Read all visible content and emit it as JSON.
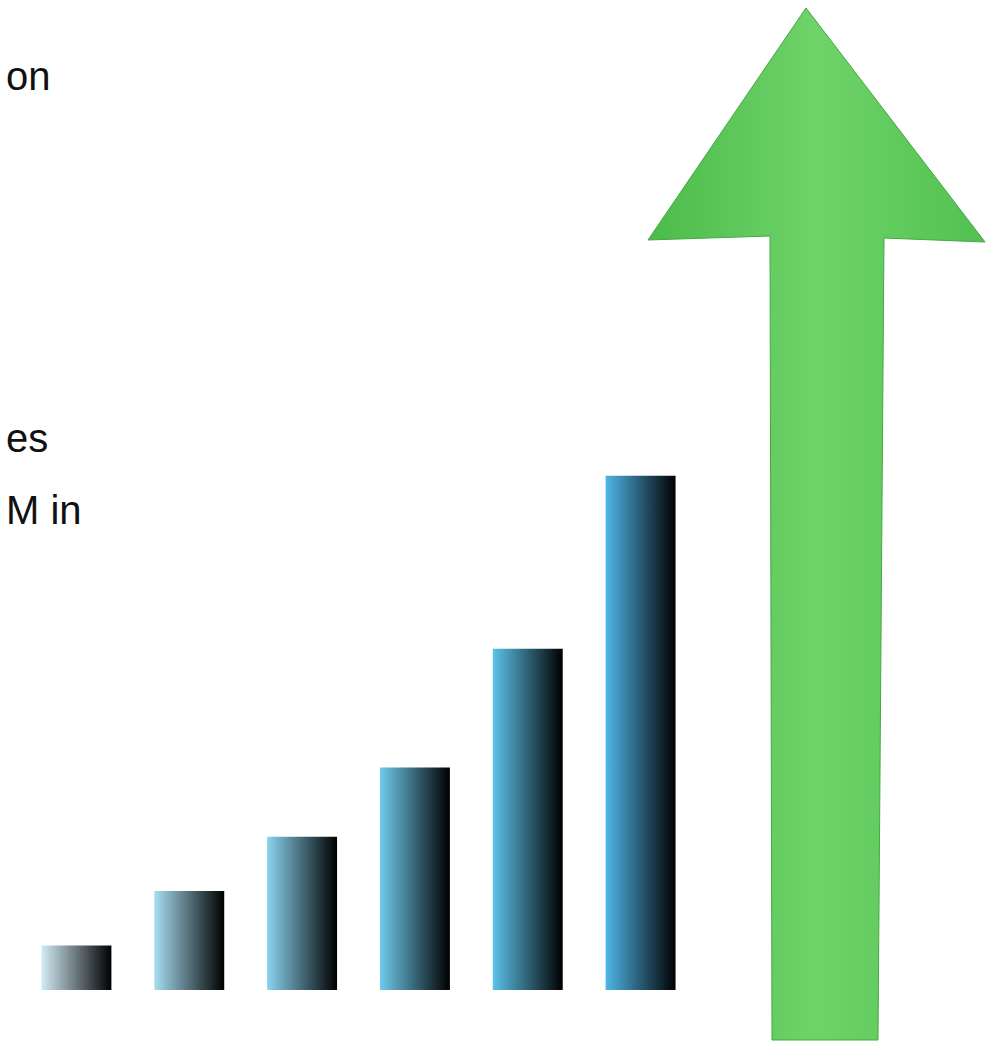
{
  "chart_data": {
    "type": "bar",
    "annotations": [
      "on",
      "es",
      "M in"
    ],
    "categories": [
      null,
      null,
      null,
      null,
      null,
      null
    ],
    "values": [
      45,
      100,
      155,
      225,
      345,
      520
    ],
    "colors": [
      "#d3ecf6",
      "#a8def2",
      "#8ad4ef",
      "#6fcbed",
      "#5cc3eb",
      "#4fb6e8"
    ],
    "ylim": [
      0,
      900
    ],
    "grid": false,
    "tick_labels": false,
    "data_labels": false
  }
}
